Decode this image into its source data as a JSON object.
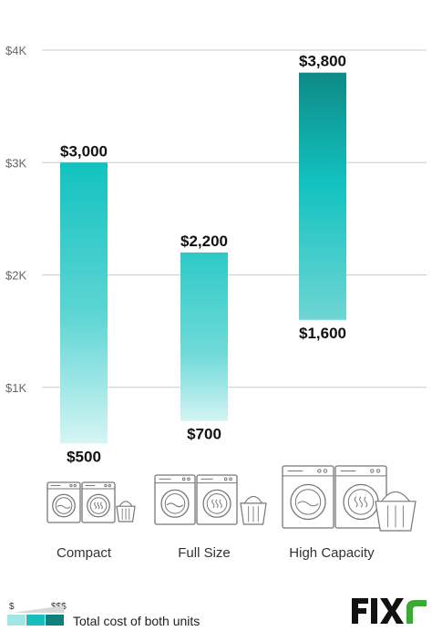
{
  "chart_data": {
    "type": "bar",
    "subtype": "floating-range",
    "categories": [
      "Compact",
      "Full Size",
      "High Capacity"
    ],
    "series": [
      {
        "low": [
          500,
          700,
          1600
        ],
        "high": [
          3000,
          2200,
          3800
        ]
      }
    ],
    "data_labels": {
      "low": [
        "$500",
        "$700",
        "$1,600"
      ],
      "high": [
        "$3,000",
        "$2,200",
        "$3,800"
      ]
    },
    "y_ticks": [
      {
        "value": 1000,
        "label": "$1K"
      },
      {
        "value": 2000,
        "label": "$2K"
      },
      {
        "value": 3000,
        "label": "$3K"
      },
      {
        "value": 4000,
        "label": "$4K"
      }
    ],
    "ylim": [
      0,
      4000
    ],
    "grid": true,
    "title": "",
    "xlabel": "",
    "ylabel": "",
    "colors": {
      "bar_top_dark": "#0e8a86",
      "bar_mid": "#12c2c0",
      "bar_light": "#c9f2f0",
      "grid": "#cccccc"
    },
    "category_icons": [
      "compact-washer-dryer-icon",
      "full-size-washer-dryer-icon",
      "high-capacity-washer-dryer-icon"
    ],
    "legend": {
      "min_label": "$",
      "max_label": "$$$",
      "text": "Total cost of both units",
      "colors": [
        "#9fe6e4",
        "#15bfc0",
        "#10807c"
      ],
      "placement": "bottom-left"
    },
    "brand": {
      "name": "Fixr",
      "logo_icon": "fixr-logo-icon",
      "color": "#111111",
      "accent": "#3aa935"
    }
  }
}
